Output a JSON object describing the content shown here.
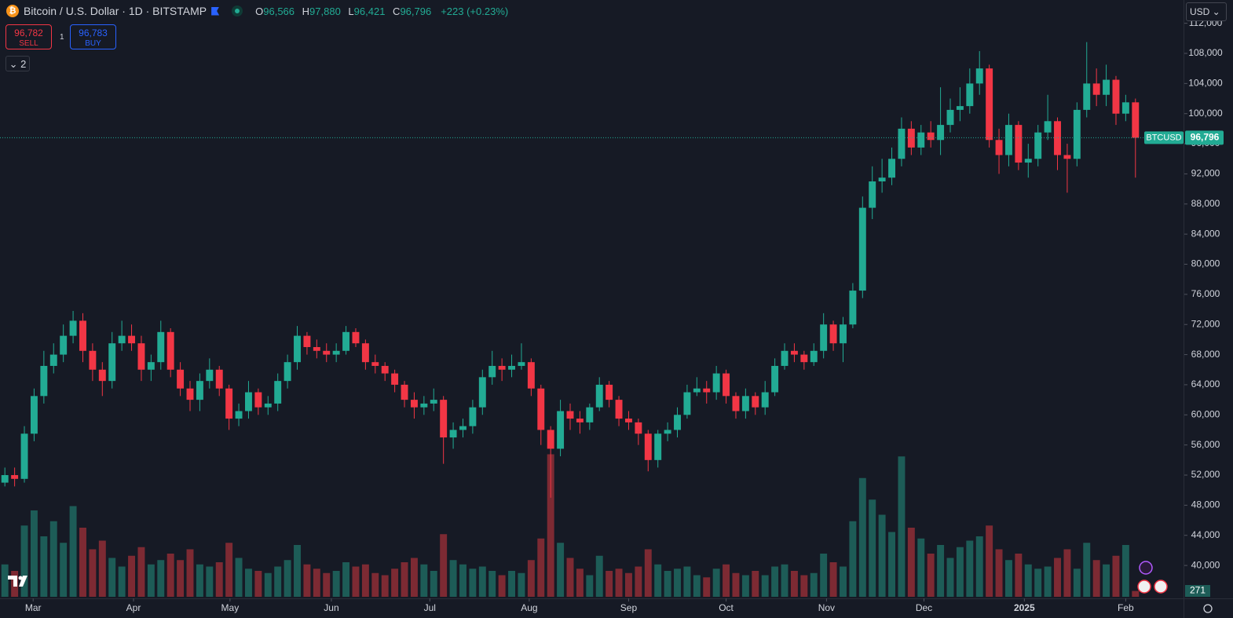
{
  "header": {
    "title": "Bitcoin / U.S. Dollar · 1D · BITSTAMP",
    "ohlc": [
      {
        "key": "O",
        "value": "96,566"
      },
      {
        "key": "H",
        "value": "97,880"
      },
      {
        "key": "L",
        "value": "96,421"
      },
      {
        "key": "C",
        "value": "96,796"
      }
    ],
    "change": "+223 (+0.23%)",
    "sell_price": "96,782",
    "sell_label": "SELL",
    "spread": "1",
    "buy_price": "96,783",
    "buy_label": "BUY",
    "indicators_count": "2",
    "currency": "USD"
  },
  "chart_data": {
    "type": "candlestick",
    "symbol": "BTCUSD",
    "up_color": "#22ab94",
    "down_color": "#f23645",
    "volume_up_color": "#1d5c57",
    "volume_down_color": "#7d2a33",
    "xlim": [
      -0.5,
      116.5
    ],
    "xticks": [
      {
        "value": 2.9,
        "label": "Mar"
      },
      {
        "value": 13.2,
        "label": "Apr"
      },
      {
        "value": 23.1,
        "label": "May"
      },
      {
        "value": 33.5,
        "label": "Jun"
      },
      {
        "value": 43.6,
        "label": "Jul"
      },
      {
        "value": 53.8,
        "label": "Aug"
      },
      {
        "value": 64.0,
        "label": "Sep"
      },
      {
        "value": 74.0,
        "label": "Oct"
      },
      {
        "value": 84.3,
        "label": "Nov"
      },
      {
        "value": 94.3,
        "label": "Dec"
      },
      {
        "value": 104.6,
        "label": "2025"
      },
      {
        "value": 115.0,
        "label": "Feb"
      }
    ],
    "ylim": [
      35630,
      115090
    ],
    "yticks": [
      {
        "value": 40000,
        "label": "40,000"
      },
      {
        "value": 44000,
        "label": "44,000"
      },
      {
        "value": 48000,
        "label": "48,000"
      },
      {
        "value": 52000,
        "label": "52,000"
      },
      {
        "value": 56000,
        "label": "56,000"
      },
      {
        "value": 60000,
        "label": "60,000"
      },
      {
        "value": 64000,
        "label": "64,000"
      },
      {
        "value": 68000,
        "label": "68,000"
      },
      {
        "value": 72000,
        "label": "72,000"
      },
      {
        "value": 76000,
        "label": "76,000"
      },
      {
        "value": 80000,
        "label": "80,000"
      },
      {
        "value": 84000,
        "label": "84,000"
      },
      {
        "value": 88000,
        "label": "88,000"
      },
      {
        "value": 92000,
        "label": "92,000"
      },
      {
        "value": 96000,
        "label": "96,000"
      },
      {
        "value": 100000,
        "label": "100,000"
      },
      {
        "value": 104000,
        "label": "104,000"
      },
      {
        "value": 108000,
        "label": "108,000"
      },
      {
        "value": 112000,
        "label": "112,000"
      }
    ],
    "last_price": {
      "value": 96796,
      "label": "96,796"
    },
    "open": [
      51000,
      52000,
      51500,
      57500,
      62500,
      66500,
      68000,
      70500,
      72500,
      68500,
      66000,
      64500,
      69500,
      70500,
      69500,
      66000,
      67000,
      71000,
      66000,
      63500,
      62000,
      64500,
      66000,
      63500,
      59500,
      60500,
      63000,
      61000,
      61500,
      64500,
      67000,
      70500,
      69000,
      68500,
      68000,
      68500,
      71000,
      69500,
      67000,
      66500,
      65500,
      64000,
      62000,
      61000,
      61500,
      62000,
      57000,
      58000,
      58500,
      61000,
      65000,
      66500,
      66000,
      66500,
      67000,
      63500,
      58000,
      55500,
      60500,
      59500,
      59000,
      61000,
      64000,
      62000,
      59500,
      59000,
      57500,
      54000,
      57500,
      58000,
      60000,
      63000,
      63500,
      63000,
      65500,
      62500,
      60500,
      62500,
      61000,
      63000,
      66500,
      68500,
      68000,
      67000,
      68500,
      72000,
      69500,
      72000,
      76500,
      87500,
      91000,
      91500,
      94000,
      98000,
      95500,
      97500,
      96500,
      98500,
      100500,
      101000,
      104000,
      106000,
      96500,
      94500,
      98500,
      93500,
      94000,
      97500,
      99000,
      94500,
      94000,
      100500,
      104000,
      102500,
      104500,
      100000,
      101500
    ],
    "high": [
      53000,
      53000,
      58500,
      63500,
      68500,
      69500,
      72000,
      73800,
      73500,
      69500,
      67000,
      71000,
      72500,
      72000,
      70500,
      68000,
      72500,
      71500,
      67000,
      64500,
      65500,
      67500,
      66500,
      64000,
      61500,
      64500,
      63500,
      62500,
      65500,
      68000,
      71800,
      71000,
      70000,
      69500,
      69500,
      71800,
      71500,
      70000,
      68000,
      67000,
      66000,
      64500,
      63000,
      62500,
      63500,
      62500,
      59000,
      59500,
      62000,
      66000,
      68500,
      67500,
      68000,
      69500,
      67500,
      64000,
      58500,
      62000,
      61500,
      60500,
      61500,
      65000,
      64500,
      62500,
      60500,
      59500,
      58000,
      58000,
      59000,
      61000,
      64000,
      65000,
      64500,
      66500,
      66000,
      63000,
      63500,
      63000,
      64500,
      67500,
      69500,
      69500,
      68500,
      69500,
      73500,
      72500,
      73000,
      77500,
      89000,
      93000,
      94000,
      95500,
      99500,
      99000,
      98500,
      99000,
      103500,
      102000,
      103500,
      106000,
      108300,
      106500,
      98000,
      100000,
      99000,
      96000,
      98500,
      102500,
      99500,
      96000,
      101500,
      109500,
      106000,
      106500,
      105000,
      102500,
      102000
    ],
    "low": [
      50500,
      50500,
      51000,
      56500,
      61500,
      65500,
      67000,
      69500,
      67000,
      64500,
      62500,
      63500,
      68500,
      68500,
      64500,
      64500,
      66000,
      65000,
      62500,
      60500,
      60500,
      63500,
      62500,
      58000,
      58500,
      59500,
      60000,
      60000,
      60500,
      63500,
      66000,
      68000,
      67500,
      67000,
      67000,
      68000,
      69000,
      66000,
      65500,
      64500,
      63000,
      61000,
      59500,
      60000,
      60500,
      53500,
      55500,
      57000,
      57500,
      60000,
      64000,
      64500,
      65000,
      66000,
      62500,
      56000,
      49000,
      54500,
      58000,
      57500,
      58000,
      60500,
      61000,
      58500,
      58000,
      56000,
      52500,
      53000,
      56500,
      57000,
      59500,
      62500,
      61500,
      62000,
      61500,
      59500,
      59500,
      60000,
      60000,
      62500,
      66000,
      67000,
      66000,
      66500,
      67500,
      68500,
      67000,
      71500,
      75500,
      86000,
      89500,
      90500,
      93000,
      94500,
      94500,
      95500,
      94500,
      97500,
      99000,
      100000,
      102500,
      95500,
      92000,
      93000,
      92500,
      91500,
      93000,
      96500,
      92500,
      89500,
      93000,
      99500,
      101000,
      101000,
      98500,
      99000,
      91500
    ],
    "close": [
      52000,
      51500,
      57500,
      62500,
      66500,
      68000,
      70500,
      72500,
      68500,
      66000,
      64500,
      69500,
      70500,
      69500,
      66000,
      67000,
      71000,
      66000,
      63500,
      62000,
      64500,
      66000,
      63500,
      59500,
      60500,
      63000,
      61000,
      61500,
      64500,
      67000,
      70500,
      69000,
      68500,
      68000,
      68500,
      71000,
      69500,
      67000,
      66500,
      65500,
      64000,
      62000,
      61000,
      61500,
      62000,
      57000,
      58000,
      58500,
      61000,
      65000,
      66500,
      66000,
      66500,
      67000,
      63500,
      58000,
      55500,
      60500,
      59500,
      59000,
      61000,
      64000,
      62000,
      59500,
      59000,
      57500,
      54000,
      57500,
      58000,
      60000,
      63000,
      63500,
      63000,
      65500,
      62500,
      60500,
      62500,
      61000,
      63000,
      66500,
      68500,
      68000,
      67000,
      68500,
      72000,
      69500,
      72000,
      76500,
      87500,
      91000,
      91500,
      94000,
      98000,
      95500,
      97500,
      96500,
      98500,
      100500,
      101000,
      104000,
      106000,
      96500,
      94500,
      98500,
      93500,
      94000,
      97500,
      99000,
      94500,
      94000,
      100500,
      104000,
      102500,
      104500,
      100000,
      101500,
      96796
    ],
    "vlim": [
      0,
      8000
    ],
    "volume": [
      1500,
      1200,
      3300,
      4000,
      2800,
      3500,
      2500,
      4200,
      3200,
      2200,
      2600,
      1800,
      1400,
      1900,
      2300,
      1500,
      1700,
      2000,
      1700,
      2200,
      1500,
      1400,
      1600,
      2500,
      1800,
      1300,
      1200,
      1100,
      1400,
      1700,
      2400,
      1500,
      1300,
      1100,
      1200,
      1600,
      1400,
      1500,
      1100,
      1000,
      1300,
      1600,
      1800,
      1500,
      1200,
      2900,
      1700,
      1500,
      1300,
      1400,
      1200,
      1000,
      1200,
      1100,
      1700,
      2700,
      6600,
      2500,
      1800,
      1300,
      1000,
      1900,
      1200,
      1300,
      1100,
      1400,
      2200,
      1500,
      1200,
      1300,
      1400,
      1000,
      900,
      1300,
      1500,
      1100,
      1000,
      1200,
      1000,
      1400,
      1500,
      1200,
      1000,
      1100,
      2000,
      1600,
      1400,
      3500,
      5500,
      4500,
      3800,
      3000,
      6500,
      3200,
      2700,
      2000,
      2400,
      1800,
      2300,
      2600,
      2800,
      3300,
      2200,
      1700,
      2000,
      1500,
      1300,
      1400,
      1800,
      2200,
      1300,
      2500,
      1700,
      1500,
      1900,
      2400,
      271
    ]
  }
}
